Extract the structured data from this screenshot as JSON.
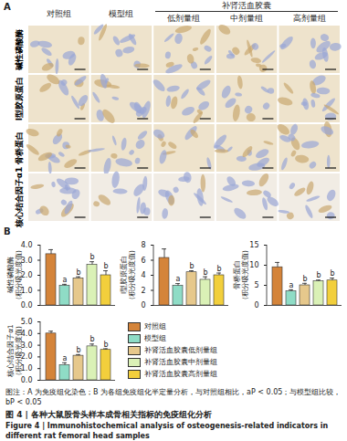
{
  "panel_a": {
    "label": "A",
    "group_header": "补肾活血胶囊",
    "columns": [
      "对照组",
      "模型组",
      "低剂量组",
      "中剂量组",
      "高剂量组"
    ],
    "rows": [
      "碱性磷酸酶",
      "I型胶原蛋白",
      "骨桥蛋白",
      "核心结合因子α1"
    ]
  },
  "panel_b_label": "B",
  "chart_data": [
    {
      "type": "bar",
      "y_label": "碱性磷酸酶(积分吸光度值)",
      "categories": [
        "对照组",
        "模型组",
        "补肾活血胶囊低剂量组",
        "补肾活血胶囊中剂量组",
        "补肾活血胶囊高剂量组"
      ],
      "values": [
        3.4,
        1.3,
        1.8,
        2.7,
        2.0
      ],
      "errors": [
        0.3,
        0.1,
        0.1,
        0.2,
        0.3
      ],
      "annotations": [
        null,
        "a",
        "b",
        "b",
        "b"
      ],
      "colors": [
        "#d4843a",
        "#8fdcc6",
        "#e6c88c",
        "#daf1b6",
        "#f2cf3c"
      ],
      "ylim": [
        0,
        4
      ],
      "yticks": [
        0,
        1,
        2,
        3,
        4
      ],
      "tick_labels": "y"
    },
    {
      "type": "bar",
      "y_label": "I型胶原蛋白(积分吸光度值)",
      "categories": [
        "对照组",
        "模型组",
        "补肾活血胶囊低剂量组",
        "补肾活血胶囊中剂量组",
        "补肾活血胶囊高剂量组"
      ],
      "values": [
        6.3,
        2.6,
        4.4,
        3.4,
        4.0
      ],
      "errors": [
        1.2,
        0.3,
        0.2,
        0.4,
        0.3
      ],
      "annotations": [
        null,
        "a",
        "b",
        "b",
        "b"
      ],
      "colors": [
        "#d4843a",
        "#8fdcc6",
        "#e6c88c",
        "#daf1b6",
        "#f2cf3c"
      ],
      "ylim": [
        0,
        8
      ],
      "yticks": [
        0,
        2,
        4,
        6,
        8
      ],
      "tick_labels": "y"
    },
    {
      "type": "bar",
      "y_label": "骨桥蛋白(积分吸光度值)",
      "categories": [
        "对照组",
        "模型组",
        "补肾活血胶囊低剂量组",
        "补肾活血胶囊中剂量组",
        "补肾活血胶囊高剂量组"
      ],
      "values": [
        9.5,
        3.5,
        5.0,
        6.0,
        6.2
      ],
      "errors": [
        1.2,
        0.4,
        0.5,
        0.3,
        0.6
      ],
      "annotations": [
        null,
        "a",
        "b",
        "b",
        "b"
      ],
      "colors": [
        "#d4843a",
        "#8fdcc6",
        "#e6c88c",
        "#daf1b6",
        "#f2cf3c"
      ],
      "ylim": [
        0,
        15
      ],
      "yticks": [
        0,
        5,
        10,
        15
      ],
      "tick_labels": "y"
    },
    {
      "type": "bar",
      "y_label": "核心结合因子α1(积分吸光度值)",
      "categories": [
        "对照组",
        "模型组",
        "补肾活血胶囊低剂量组",
        "补肾活血胶囊中剂量组",
        "补肾活血胶囊高剂量组"
      ],
      "values": [
        4.0,
        1.3,
        2.1,
        2.9,
        2.6
      ],
      "errors": [
        0.2,
        0.2,
        0.1,
        0.2,
        0.1
      ],
      "annotations": [
        null,
        "a",
        "b",
        "b",
        "b"
      ],
      "colors": [
        "#d4843a",
        "#8fdcc6",
        "#e6c88c",
        "#daf1b6",
        "#f2cf3c"
      ],
      "ylim": [
        0,
        5
      ],
      "yticks": [
        0,
        1,
        2,
        3,
        4,
        5
      ],
      "tick_labels": "y",
      "legend": "right"
    }
  ],
  "caption": {
    "note": "图注：A 为免疫组化染色；B 为各组免疫组化半定量分析，与对照组相比，aP < 0.05；与模型组比较，bP < 0.05",
    "title_zh": "图 4 | 各种大鼠股骨头样本成骨相关指标的免疫组化分析",
    "title_en": "Figure 4 | Immunohistochemical analysis of osteogenesis-related indicators in different rat femoral head samples"
  }
}
